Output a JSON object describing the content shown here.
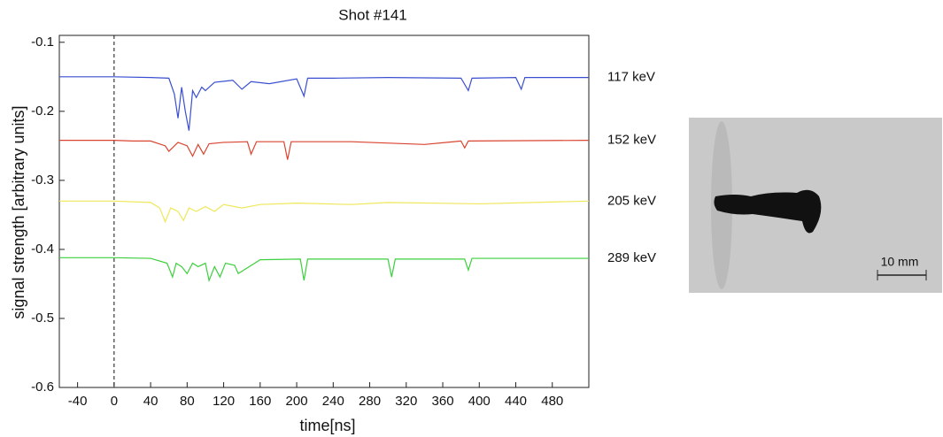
{
  "chart_data": {
    "type": "line",
    "title": "Shot #141",
    "xlabel": "time[ns]",
    "ylabel": "signal strength [arbitrary units]",
    "xlim": [
      -60,
      520
    ],
    "ylim": [
      -0.6,
      -0.09
    ],
    "xticks": [
      -40,
      0,
      40,
      80,
      120,
      160,
      200,
      240,
      280,
      320,
      360,
      400,
      440,
      480
    ],
    "yticks": [
      -0.1,
      -0.2,
      -0.3,
      -0.4,
      -0.5,
      -0.6
    ],
    "reference_x": 0,
    "series": [
      {
        "name": "117 keV",
        "color": "#3a4fd0",
        "x": [
          -60,
          -20,
          0,
          40,
          60,
          66,
          70,
          74,
          78,
          82,
          86,
          90,
          96,
          100,
          110,
          130,
          140,
          150,
          170,
          200,
          208,
          212,
          240,
          300,
          380,
          388,
          392,
          440,
          446,
          450,
          520
        ],
        "values": [
          -0.15,
          -0.15,
          -0.15,
          -0.151,
          -0.152,
          -0.175,
          -0.21,
          -0.165,
          -0.2,
          -0.228,
          -0.17,
          -0.18,
          -0.165,
          -0.17,
          -0.158,
          -0.155,
          -0.168,
          -0.157,
          -0.16,
          -0.153,
          -0.178,
          -0.152,
          -0.152,
          -0.151,
          -0.152,
          -0.17,
          -0.152,
          -0.151,
          -0.168,
          -0.151,
          -0.151
        ]
      },
      {
        "name": "152 keV",
        "color": "#d9442e",
        "x": [
          -60,
          0,
          20,
          40,
          56,
          60,
          70,
          80,
          86,
          92,
          98,
          104,
          120,
          146,
          150,
          156,
          186,
          190,
          194,
          260,
          340,
          380,
          384,
          388,
          520
        ],
        "values": [
          -0.242,
          -0.242,
          -0.243,
          -0.243,
          -0.25,
          -0.258,
          -0.245,
          -0.25,
          -0.265,
          -0.248,
          -0.262,
          -0.247,
          -0.245,
          -0.244,
          -0.262,
          -0.244,
          -0.244,
          -0.27,
          -0.244,
          -0.244,
          -0.248,
          -0.243,
          -0.253,
          -0.243,
          -0.242
        ]
      },
      {
        "name": "205 keV",
        "color": "#eee85a",
        "x": [
          -60,
          0,
          40,
          50,
          56,
          62,
          70,
          76,
          82,
          90,
          100,
          110,
          120,
          140,
          160,
          200,
          260,
          300,
          400,
          520
        ],
        "values": [
          -0.33,
          -0.33,
          -0.332,
          -0.34,
          -0.36,
          -0.34,
          -0.345,
          -0.358,
          -0.34,
          -0.345,
          -0.338,
          -0.345,
          -0.335,
          -0.34,
          -0.335,
          -0.333,
          -0.335,
          -0.332,
          -0.334,
          -0.33
        ]
      },
      {
        "name": "289 keV",
        "color": "#3ccf3c",
        "x": [
          -60,
          0,
          40,
          58,
          64,
          68,
          74,
          80,
          86,
          92,
          100,
          104,
          110,
          116,
          122,
          132,
          136,
          160,
          204,
          208,
          212,
          300,
          304,
          308,
          384,
          388,
          392,
          520
        ],
        "values": [
          -0.412,
          -0.412,
          -0.413,
          -0.42,
          -0.44,
          -0.42,
          -0.425,
          -0.435,
          -0.42,
          -0.425,
          -0.42,
          -0.445,
          -0.425,
          -0.44,
          -0.42,
          -0.423,
          -0.435,
          -0.415,
          -0.414,
          -0.445,
          -0.414,
          -0.414,
          -0.44,
          -0.414,
          -0.414,
          -0.43,
          -0.413,
          -0.413
        ]
      }
    ]
  },
  "photo": {
    "scale_label": "10 mm"
  }
}
